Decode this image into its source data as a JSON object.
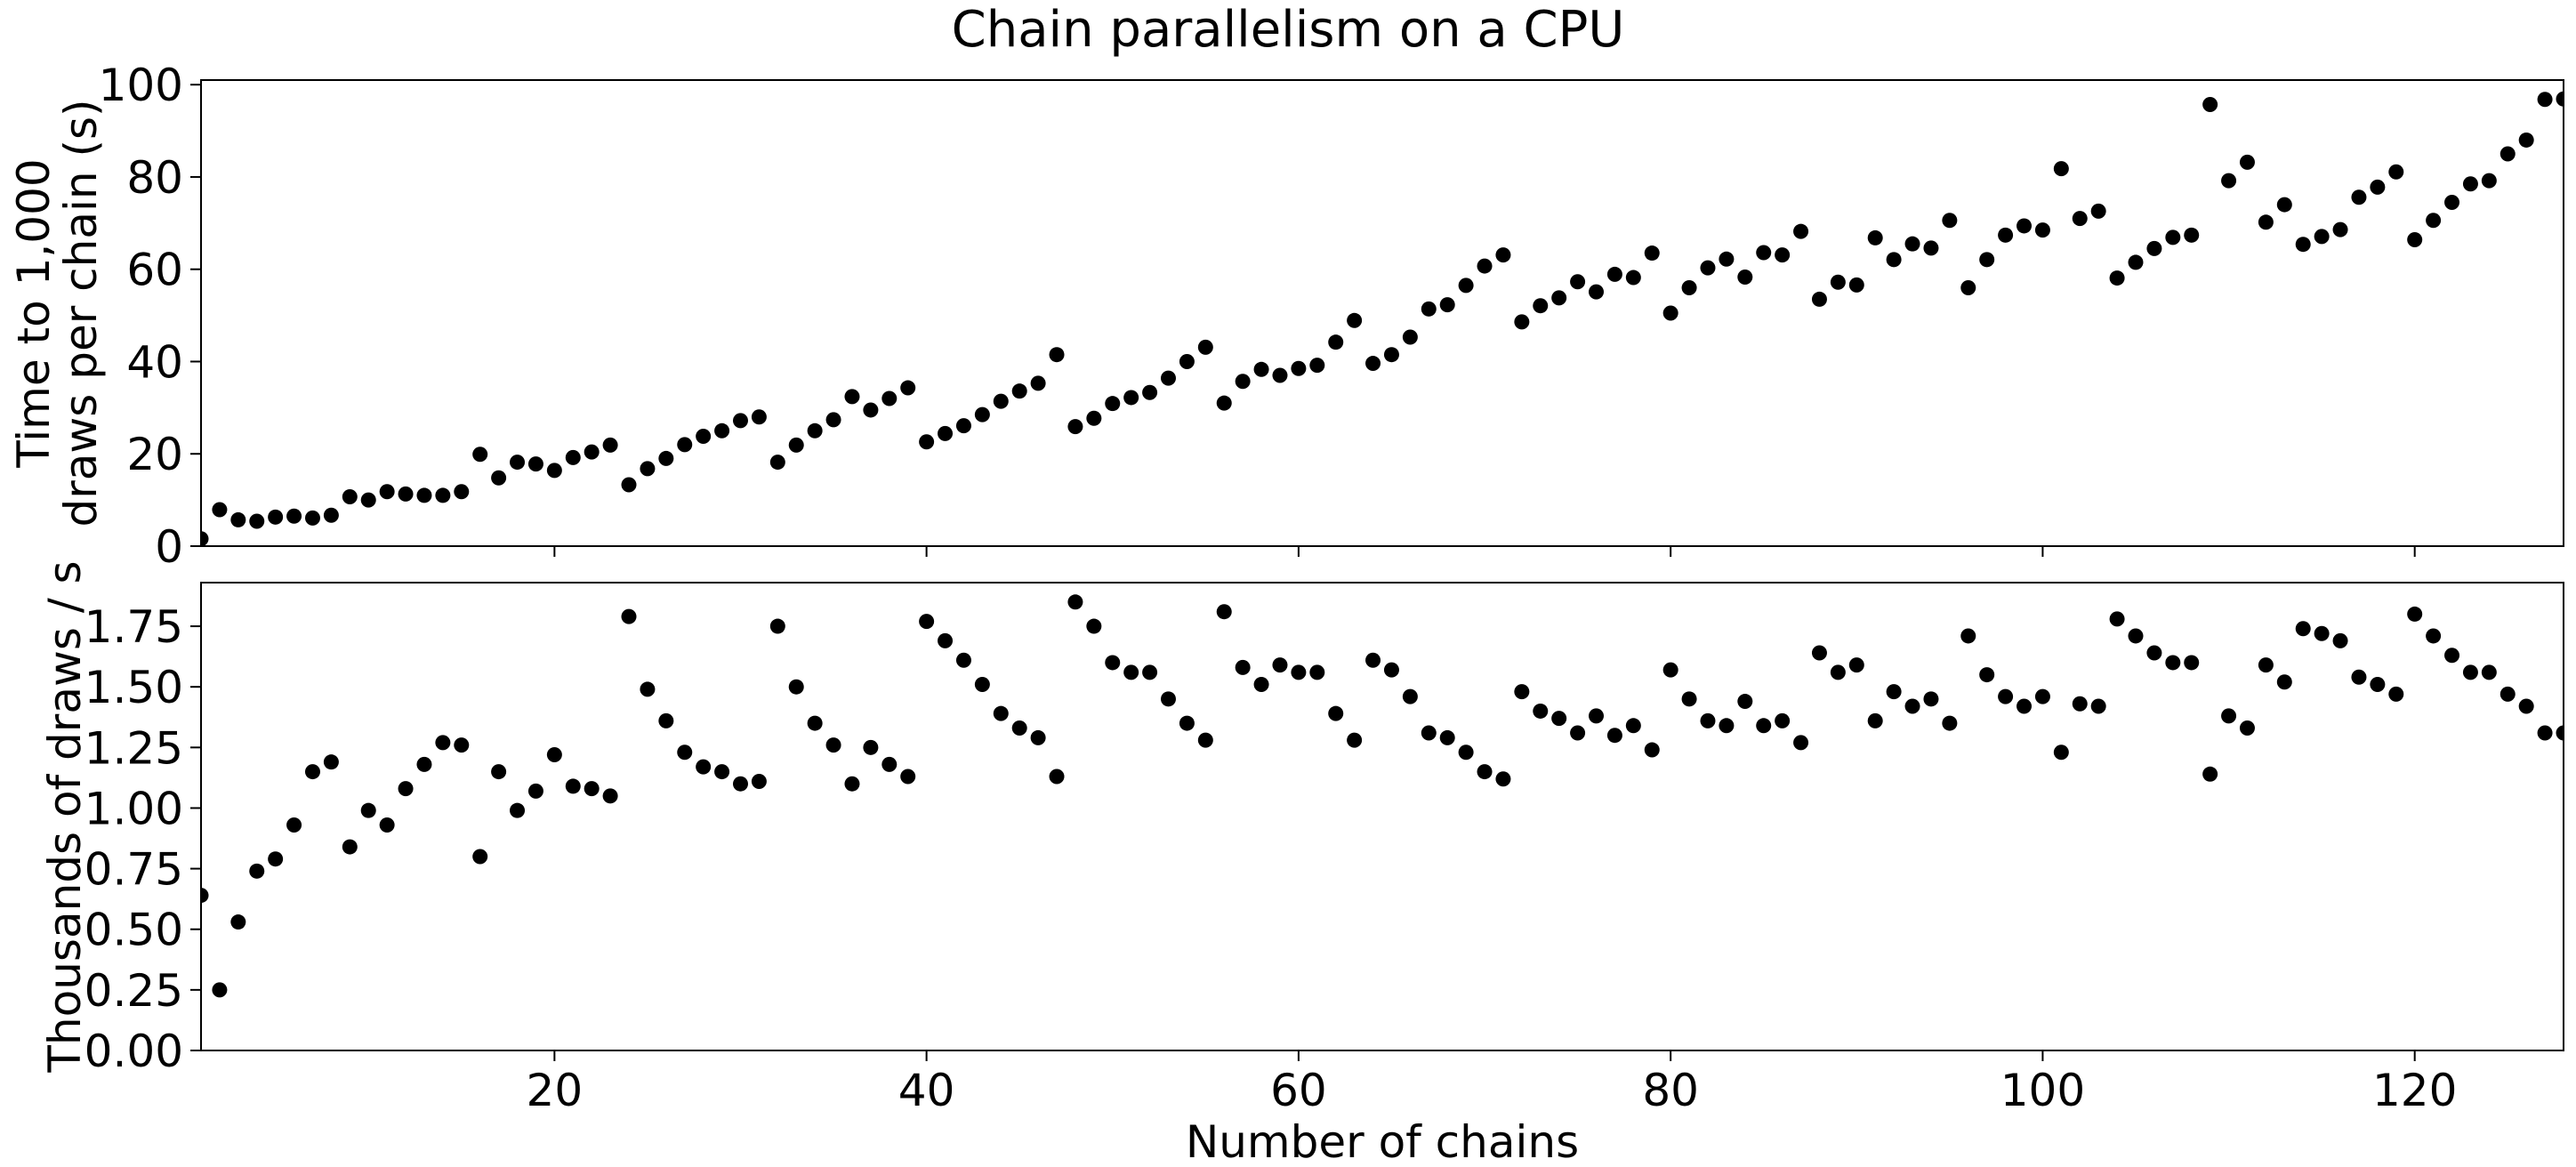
{
  "figure_title": "Chain parallelism on a CPU",
  "chart_data": [
    {
      "type": "scatter",
      "ylabel_lines": [
        "Time to 1,000",
        "draws per chain (s)"
      ],
      "xlabel": "",
      "xlim": [
        1,
        128
      ],
      "ylim": [
        0,
        101
      ],
      "yticks": [
        0,
        20,
        40,
        60,
        80,
        100
      ],
      "ytick_labels": [
        "0",
        "20",
        "40",
        "60",
        "80",
        "100"
      ],
      "xticks": [
        20,
        40,
        60,
        80,
        100,
        120
      ],
      "xtick_labels": [],
      "marker_color": "#000000",
      "x": [
        1,
        2,
        3,
        4,
        5,
        6,
        7,
        8,
        9,
        10,
        11,
        12,
        13,
        14,
        15,
        16,
        17,
        18,
        19,
        20,
        21,
        22,
        23,
        24,
        25,
        26,
        27,
        28,
        29,
        30,
        31,
        32,
        33,
        34,
        35,
        36,
        37,
        38,
        39,
        40,
        41,
        42,
        43,
        44,
        45,
        46,
        47,
        48,
        49,
        50,
        51,
        52,
        53,
        54,
        55,
        56,
        57,
        58,
        59,
        60,
        61,
        62,
        63,
        64,
        65,
        66,
        67,
        68,
        69,
        70,
        71,
        72,
        73,
        74,
        75,
        76,
        77,
        78,
        79,
        80,
        81,
        82,
        83,
        84,
        85,
        86,
        87,
        88,
        89,
        90,
        91,
        92,
        93,
        94,
        95,
        96,
        97,
        98,
        99,
        100,
        101,
        102,
        103,
        104,
        105,
        106,
        107,
        108,
        109,
        110,
        111,
        112,
        113,
        114,
        115,
        116,
        117,
        118,
        119,
        120,
        121,
        122,
        123,
        124,
        125,
        126,
        127,
        128
      ],
      "y": [
        1.6,
        7.9,
        5.7,
        5.4,
        6.3,
        6.5,
        6.1,
        6.7,
        10.7,
        10.0,
        11.8,
        11.3,
        11.0,
        11.0,
        11.8,
        19.9,
        14.8,
        18.2,
        17.8,
        16.4,
        19.2,
        20.4,
        21.9,
        13.3,
        16.8,
        19.0,
        22.0,
        23.8,
        25.0,
        27.2,
        28.0,
        18.2,
        21.9,
        25.0,
        27.4,
        32.4,
        29.5,
        32.0,
        34.3,
        22.6,
        24.4,
        26.1,
        28.5,
        31.4,
        33.6,
        35.3,
        41.5,
        25.9,
        27.7,
        30.9,
        32.2,
        33.3,
        36.4,
        40.0,
        43.1,
        31.0,
        35.7,
        38.3,
        37.0,
        38.5,
        39.2,
        44.2,
        48.9,
        39.6,
        41.5,
        45.3,
        51.4,
        52.3,
        56.5,
        60.7,
        63.1,
        48.6,
        52.1,
        53.8,
        57.3,
        55.1,
        58.9,
        58.2,
        63.5,
        50.5,
        56.0,
        60.3,
        62.2,
        58.3,
        63.6,
        63.1,
        68.2,
        53.5,
        57.2,
        56.6,
        66.8,
        62.1,
        65.5,
        64.6,
        70.6,
        56.0,
        62.1,
        67.4,
        69.4,
        68.5,
        81.8,
        71.0,
        72.6,
        58.1,
        61.5,
        64.5,
        66.9,
        67.4,
        95.7,
        79.2,
        83.2,
        70.2,
        74.0,
        65.4,
        67.1,
        68.6,
        75.6,
        77.8,
        81.1,
        66.4,
        70.6,
        74.5,
        78.5,
        79.2,
        85.0,
        88.0,
        96.8,
        96.9
      ]
    },
    {
      "type": "scatter",
      "ylabel_lines": [
        "Thousands of draws / s"
      ],
      "xlabel": "Number of chains",
      "xlim": [
        1,
        128
      ],
      "ylim": [
        0,
        1.93
      ],
      "yticks": [
        0,
        0.25,
        0.5,
        0.75,
        1.0,
        1.25,
        1.5,
        1.75
      ],
      "ytick_labels": [
        "0.00",
        "0.25",
        "0.50",
        "0.75",
        "1.00",
        "1.25",
        "1.50",
        "1.75"
      ],
      "xticks": [
        20,
        40,
        60,
        80,
        100,
        120
      ],
      "xtick_labels": [
        "20",
        "40",
        "60",
        "80",
        "100",
        "120"
      ],
      "marker_color": "#000000",
      "x": [
        1,
        2,
        3,
        4,
        5,
        6,
        7,
        8,
        9,
        10,
        11,
        12,
        13,
        14,
        15,
        16,
        17,
        18,
        19,
        20,
        21,
        22,
        23,
        24,
        25,
        26,
        27,
        28,
        29,
        30,
        31,
        32,
        33,
        34,
        35,
        36,
        37,
        38,
        39,
        40,
        41,
        42,
        43,
        44,
        45,
        46,
        47,
        48,
        49,
        50,
        51,
        52,
        53,
        54,
        55,
        56,
        57,
        58,
        59,
        60,
        61,
        62,
        63,
        64,
        65,
        66,
        67,
        68,
        69,
        70,
        71,
        72,
        73,
        74,
        75,
        76,
        77,
        78,
        79,
        80,
        81,
        82,
        83,
        84,
        85,
        86,
        87,
        88,
        89,
        90,
        91,
        92,
        93,
        94,
        95,
        96,
        97,
        98,
        99,
        100,
        101,
        102,
        103,
        104,
        105,
        106,
        107,
        108,
        109,
        110,
        111,
        112,
        113,
        114,
        115,
        116,
        117,
        118,
        119,
        120,
        121,
        122,
        123,
        124,
        125,
        126,
        127,
        128
      ],
      "y": [
        0.64,
        0.25,
        0.53,
        0.74,
        0.79,
        0.93,
        1.15,
        1.19,
        0.84,
        0.99,
        0.93,
        1.08,
        1.18,
        1.27,
        1.26,
        0.8,
        1.15,
        0.99,
        1.07,
        1.22,
        1.09,
        1.08,
        1.05,
        1.79,
        1.49,
        1.36,
        1.23,
        1.17,
        1.15,
        1.1,
        1.11,
        1.75,
        1.5,
        1.35,
        1.26,
        1.1,
        1.25,
        1.18,
        1.13,
        1.77,
        1.69,
        1.61,
        1.51,
        1.39,
        1.33,
        1.29,
        1.13,
        1.85,
        1.75,
        1.6,
        1.56,
        1.56,
        1.45,
        1.35,
        1.28,
        1.81,
        1.58,
        1.51,
        1.59,
        1.56,
        1.56,
        1.39,
        1.28,
        1.61,
        1.57,
        1.46,
        1.31,
        1.29,
        1.23,
        1.15,
        1.12,
        1.48,
        1.4,
        1.37,
        1.31,
        1.38,
        1.3,
        1.34,
        1.24,
        1.57,
        1.45,
        1.36,
        1.34,
        1.44,
        1.34,
        1.36,
        1.27,
        1.64,
        1.56,
        1.59,
        1.36,
        1.48,
        1.42,
        1.45,
        1.35,
        1.71,
        1.55,
        1.46,
        1.42,
        1.46,
        1.23,
        1.43,
        1.42,
        1.78,
        1.71,
        1.64,
        1.6,
        1.6,
        1.14,
        1.38,
        1.33,
        1.59,
        1.52,
        1.74,
        1.72,
        1.69,
        1.54,
        1.51,
        1.47,
        1.8,
        1.71,
        1.63,
        1.56,
        1.56,
        1.47,
        1.42,
        1.31,
        1.31
      ]
    }
  ]
}
